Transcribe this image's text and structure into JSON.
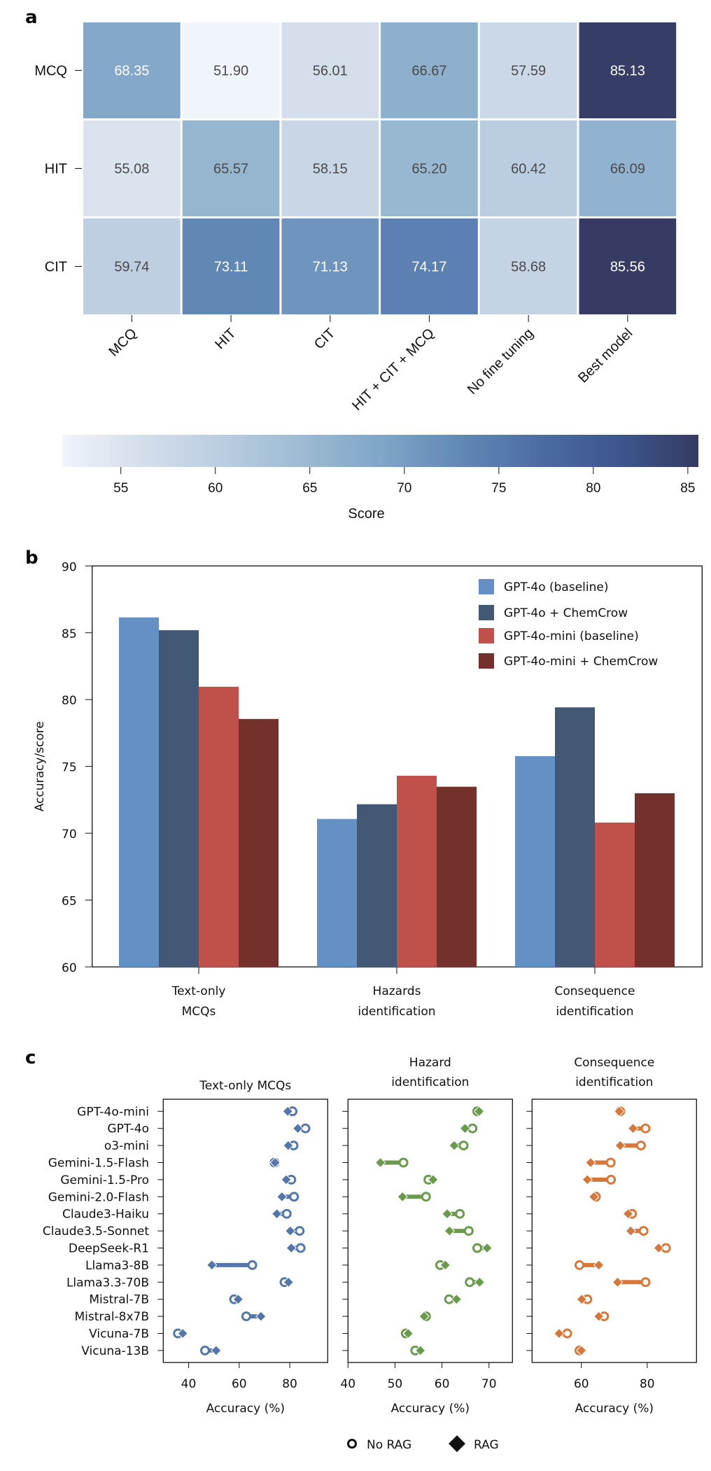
{
  "panel_labels": [
    "a",
    "b",
    "c"
  ],
  "chart_data": [
    {
      "id": "a",
      "type": "heatmap",
      "title": "",
      "row_labels": [
        "MCQ",
        "HIT",
        "CIT"
      ],
      "col_labels": [
        "MCQ",
        "HIT",
        "CIT",
        "HIT + CIT + MCQ",
        "No fine tuning",
        "Best model"
      ],
      "values": [
        [
          68.35,
          51.9,
          56.01,
          66.67,
          57.59,
          85.13
        ],
        [
          55.08,
          65.57,
          58.15,
          65.2,
          60.42,
          66.09
        ],
        [
          59.74,
          73.11,
          71.13,
          74.17,
          58.68,
          85.56
        ]
      ],
      "value_labels": [
        [
          "68.35",
          "51.90",
          "56.01",
          "66.67",
          "57.59",
          "85.13"
        ],
        [
          "55.08",
          "65.57",
          "58.15",
          "65.20",
          "60.42",
          "66.09"
        ],
        [
          "59.74",
          "73.11",
          "71.13",
          "74.17",
          "58.68",
          "85.56"
        ]
      ],
      "colorbar": {
        "label": "Score",
        "range": [
          51.9,
          85.56
        ],
        "ticks": [
          55,
          60,
          65,
          70,
          75,
          80,
          85
        ],
        "tick_labels": [
          "55",
          "60",
          "65",
          "70",
          "75",
          "80",
          "85"
        ],
        "orientation": "horizontal",
        "colors": [
          "#f0f4fb",
          "#d4deeb",
          "#bbcde1",
          "#9dbbd3",
          "#80a6c8",
          "#6288b6",
          "#4d6ca4",
          "#3d5690",
          "#353b62"
        ]
      }
    },
    {
      "id": "b",
      "type": "bar",
      "title": "",
      "categories": [
        "Text-only\nMCQs",
        "Hazards\nidentification",
        "Consequence\nidentification"
      ],
      "category_lines": [
        [
          "Text-only",
          "MCQs"
        ],
        [
          "Hazards",
          "identification"
        ],
        [
          "Consequence",
          "identification"
        ]
      ],
      "series": [
        {
          "name": "GPT-4o (baseline)",
          "color": "#6590c6",
          "values": [
            86.15,
            71.07,
            75.77
          ]
        },
        {
          "name": "GPT-4o + ChemCrow",
          "color": "#425875",
          "values": [
            85.19,
            72.17,
            79.42
          ]
        },
        {
          "name": "GPT-4o-mini (baseline)",
          "color": "#bf504a",
          "values": [
            80.96,
            74.3,
            70.8
          ]
        },
        {
          "name": "GPT-4o-mini + ChemCrow",
          "color": "#74312b",
          "values": [
            78.55,
            73.48,
            72.99
          ]
        }
      ],
      "xlabel": "",
      "ylabel": "Accuracy/score",
      "ylim": [
        60,
        90
      ],
      "yticks": [
        60,
        65,
        70,
        75,
        80,
        85,
        90
      ],
      "ytick_labels": [
        "60",
        "65",
        "70",
        "75",
        "80",
        "85",
        "90"
      ],
      "legend_position": "top-right",
      "grid": false
    },
    {
      "id": "c",
      "type": "scatter",
      "subtype": "dumbbell",
      "models": [
        "GPT-4o-mini",
        "GPT-4o",
        "o3-mini",
        "Gemini-1.5-Flash",
        "Gemini-1.5-Pro",
        "Gemini-2.0-Flash",
        "Claude3-Haiku",
        "Claude3.5-Sonnet",
        "DeepSeek-R1",
        "Llama3-8B",
        "Llama3.3-70B",
        "Mistral-7B",
        "Mistral-8x7B",
        "Vicuna-7B",
        "Vicuna-13B"
      ],
      "legend": [
        {
          "marker": "open-circle",
          "label": "No RAG"
        },
        {
          "marker": "diamond",
          "label": "RAG"
        }
      ],
      "legend_position": "bottom-center",
      "panels": [
        {
          "title_lines": [
            "Text-only MCQs"
          ],
          "xlabel": "Accuracy (%)",
          "color": "#5476a9",
          "xlim": [
            30,
            95
          ],
          "xticks": [
            40,
            60,
            80
          ],
          "xtick_labels": [
            "40",
            "60",
            "80"
          ],
          "no_rag": [
            81.1,
            86.2,
            81.5,
            74.0,
            80.6,
            81.7,
            78.8,
            83.9,
            84.3,
            65.2,
            77.9,
            58.0,
            62.8,
            35.8,
            46.5
          ],
          "rag": [
            79.2,
            83.2,
            79.4,
            74.2,
            78.6,
            76.9,
            74.9,
            80.2,
            80.6,
            49.2,
            79.5,
            59.6,
            68.6,
            37.7,
            50.9
          ]
        },
        {
          "title_lines": [
            "Hazard",
            "identification"
          ],
          "xlabel": "Accuracy (%)",
          "color": "#6a9a4c",
          "xlim": [
            40,
            75
          ],
          "xticks": [
            40,
            50,
            60,
            70
          ],
          "xtick_labels": [
            "40",
            "50",
            "60",
            "70"
          ],
          "no_rag": [
            67.5,
            66.5,
            64.6,
            51.8,
            57.1,
            56.6,
            63.8,
            65.7,
            67.5,
            59.6,
            65.9,
            61.5,
            56.6,
            52.3,
            54.3
          ],
          "rag": [
            67.9,
            64.9,
            62.6,
            46.9,
            58.1,
            51.6,
            61.1,
            61.6,
            69.6,
            60.7,
            68.0,
            63.1,
            56.2,
            52.8,
            55.4
          ]
        },
        {
          "title_lines": [
            "Consequence",
            "identification"
          ],
          "xlabel": "Accuracy (%)",
          "color": "#d8773a",
          "xlim": [
            45,
            95
          ],
          "xticks": [
            60,
            80
          ],
          "xtick_labels": [
            "60",
            "80"
          ],
          "no_rag": [
            71.8,
            79.5,
            78.1,
            68.9,
            69.0,
            64.4,
            75.4,
            78.9,
            85.7,
            59.4,
            79.5,
            61.8,
            66.9,
            55.7,
            59.4
          ],
          "rag": [
            71.5,
            75.7,
            71.8,
            62.8,
            61.8,
            63.8,
            74.2,
            75.0,
            83.5,
            65.3,
            71.0,
            60.1,
            65.3,
            53.2,
            60.0
          ]
        }
      ]
    }
  ]
}
